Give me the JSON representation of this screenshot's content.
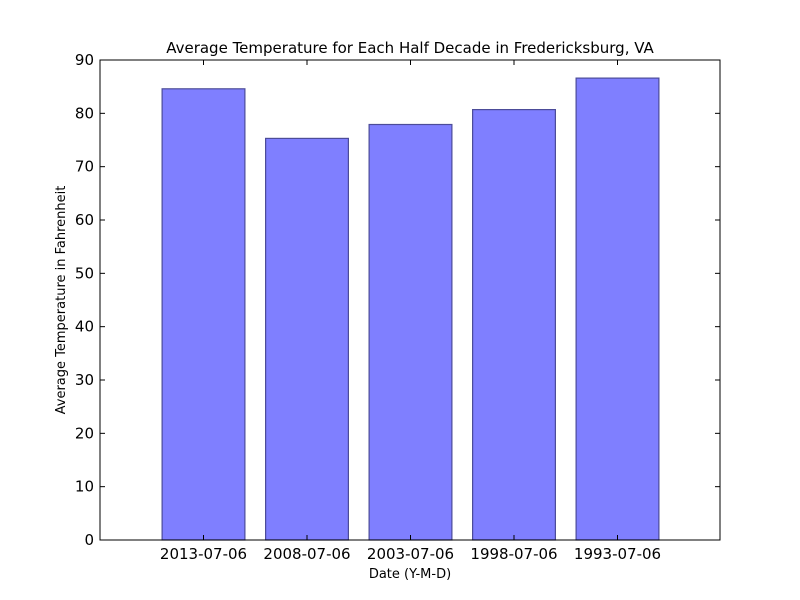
{
  "chart_data": {
    "type": "bar",
    "title": "Average Temperature for Each Half Decade in Fredericksburg, VA",
    "xlabel": "Date (Y-M-D)",
    "ylabel": "Average Temperature in Fahrenheit",
    "categories": [
      "2013-07-06",
      "2008-07-06",
      "2003-07-06",
      "1998-07-06",
      "1993-07-06"
    ],
    "values": [
      84.6,
      75.3,
      77.9,
      80.7,
      86.6
    ],
    "ylim": [
      0,
      90
    ],
    "yticks": [
      "0",
      "10",
      "20",
      "30",
      "40",
      "50",
      "60",
      "70",
      "80",
      "90"
    ],
    "grid": false,
    "bar_color": "#7f7fff",
    "bar_edge_color": "#4c4c99"
  }
}
